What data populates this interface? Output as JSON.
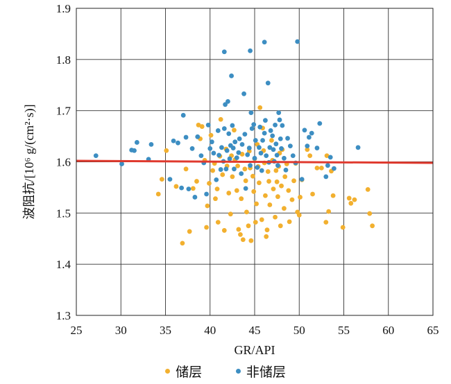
{
  "chart_data": {
    "type": "scatter",
    "xlabel": "GR/API",
    "ylabel": "波阻抗/[10⁶ g/(cm²·s)]",
    "xlim": [
      25,
      65
    ],
    "ylim": [
      1.3,
      1.9
    ],
    "xticks": [
      25,
      30,
      35,
      40,
      45,
      50,
      55,
      60,
      65
    ],
    "yticks": [
      1.3,
      1.4,
      1.5,
      1.6,
      1.7,
      1.8,
      1.9
    ],
    "xtick_labels": [
      "25",
      "30",
      "35",
      "40",
      "45",
      "50",
      "55",
      "60",
      "65"
    ],
    "ytick_labels": [
      "1.3",
      "1.4",
      "1.5",
      "1.6",
      "1.7",
      "1.8",
      "1.9"
    ],
    "grid": true,
    "legend_position": "bottom",
    "reference_line": {
      "y_start": 1.602,
      "y_end": 1.598,
      "color": "#e03a2e"
    },
    "series": [
      {
        "name": "储层",
        "color": "#f2b02f",
        "points": [
          [
            34.2,
            1.537
          ],
          [
            34.6,
            1.566
          ],
          [
            35.1,
            1.622
          ],
          [
            36.2,
            1.552
          ],
          [
            36.9,
            1.441
          ],
          [
            37.3,
            1.586
          ],
          [
            37.7,
            1.464
          ],
          [
            38.1,
            1.548
          ],
          [
            38.5,
            1.562
          ],
          [
            38.7,
            1.672
          ],
          [
            38.9,
            1.645
          ],
          [
            39.1,
            1.669
          ],
          [
            39.4,
            1.603
          ],
          [
            39.6,
            1.472
          ],
          [
            39.7,
            1.514
          ],
          [
            39.9,
            1.558
          ],
          [
            40.1,
            1.652
          ],
          [
            40.3,
            1.583
          ],
          [
            40.5,
            1.597
          ],
          [
            40.6,
            1.528
          ],
          [
            40.8,
            1.547
          ],
          [
            40.9,
            1.482
          ],
          [
            41.1,
            1.611
          ],
          [
            41.2,
            1.683
          ],
          [
            41.4,
            1.575
          ],
          [
            41.6,
            1.466
          ],
          [
            41.8,
            1.625
          ],
          [
            41.9,
            1.592
          ],
          [
            42.1,
            1.539
          ],
          [
            42.3,
            1.498
          ],
          [
            42.4,
            1.612
          ],
          [
            42.5,
            1.571
          ],
          [
            42.7,
            1.662
          ],
          [
            42.8,
            1.604
          ],
          [
            43.0,
            1.544
          ],
          [
            43.1,
            1.592
          ],
          [
            43.2,
            1.468
          ],
          [
            43.4,
            1.458
          ],
          [
            43.5,
            1.528
          ],
          [
            43.6,
            1.615
          ],
          [
            43.7,
            1.448
          ],
          [
            43.9,
            1.586
          ],
          [
            44.0,
            1.563
          ],
          [
            44.1,
            1.502
          ],
          [
            44.3,
            1.475
          ],
          [
            44.4,
            1.621
          ],
          [
            44.5,
            1.588
          ],
          [
            44.6,
            1.446
          ],
          [
            44.8,
            1.572
          ],
          [
            44.9,
            1.542
          ],
          [
            45.0,
            1.606
          ],
          [
            45.1,
            1.482
          ],
          [
            45.2,
            1.518
          ],
          [
            45.3,
            1.634
          ],
          [
            45.4,
            1.591
          ],
          [
            45.5,
            1.559
          ],
          [
            45.6,
            1.706
          ],
          [
            45.8,
            1.487
          ],
          [
            45.9,
            1.666
          ],
          [
            46.0,
            1.622
          ],
          [
            46.1,
            1.598
          ],
          [
            46.2,
            1.534
          ],
          [
            46.3,
            1.454
          ],
          [
            46.4,
            1.467
          ],
          [
            46.5,
            1.581
          ],
          [
            46.6,
            1.562
          ],
          [
            46.7,
            1.516
          ],
          [
            46.9,
            1.642
          ],
          [
            47.0,
            1.603
          ],
          [
            47.1,
            1.547
          ],
          [
            47.3,
            1.492
          ],
          [
            47.4,
            1.583
          ],
          [
            47.5,
            1.561
          ],
          [
            47.6,
            1.532
          ],
          [
            47.7,
            1.591
          ],
          [
            47.8,
            1.617
          ],
          [
            47.9,
            1.475
          ],
          [
            48.0,
            1.553
          ],
          [
            48.1,
            1.624
          ],
          [
            48.3,
            1.509
          ],
          [
            48.4,
            1.571
          ],
          [
            48.6,
            1.596
          ],
          [
            48.8,
            1.544
          ],
          [
            48.9,
            1.483
          ],
          [
            49.2,
            1.526
          ],
          [
            49.4,
            1.563
          ],
          [
            49.6,
            1.597
          ],
          [
            49.8,
            1.502
          ],
          [
            50.0,
            1.496
          ],
          [
            50.1,
            1.531
          ],
          [
            50.3,
            1.565
          ],
          [
            50.9,
            1.624
          ],
          [
            51.2,
            1.612
          ],
          [
            51.5,
            1.537
          ],
          [
            52.0,
            1.588
          ],
          [
            52.5,
            1.588
          ],
          [
            53.0,
            1.482
          ],
          [
            53.1,
            1.612
          ],
          [
            53.3,
            1.503
          ],
          [
            53.6,
            1.582
          ],
          [
            53.8,
            1.534
          ],
          [
            54.9,
            1.472
          ],
          [
            55.6,
            1.529
          ],
          [
            55.8,
            1.519
          ],
          [
            56.2,
            1.526
          ],
          [
            57.7,
            1.546
          ],
          [
            57.9,
            1.499
          ],
          [
            58.2,
            1.475
          ]
        ]
      },
      {
        "name": "非储层",
        "color": "#3d8ec2",
        "points": [
          [
            27.2,
            1.612
          ],
          [
            30.1,
            1.596
          ],
          [
            31.2,
            1.623
          ],
          [
            31.5,
            1.622
          ],
          [
            31.8,
            1.638
          ],
          [
            33.1,
            1.605
          ],
          [
            33.4,
            1.634
          ],
          [
            35.5,
            1.566
          ],
          [
            35.9,
            1.641
          ],
          [
            36.4,
            1.637
          ],
          [
            36.8,
            1.549
          ],
          [
            37.0,
            1.691
          ],
          [
            37.3,
            1.648
          ],
          [
            37.6,
            1.547
          ],
          [
            38.0,
            1.626
          ],
          [
            38.3,
            1.531
          ],
          [
            38.6,
            1.649
          ],
          [
            39.0,
            1.612
          ],
          [
            39.3,
            1.598
          ],
          [
            39.6,
            1.537
          ],
          [
            39.8,
            1.672
          ],
          [
            40.0,
            1.626
          ],
          [
            40.2,
            1.639
          ],
          [
            40.4,
            1.617
          ],
          [
            40.7,
            1.565
          ],
          [
            40.9,
            1.661
          ],
          [
            41.0,
            1.613
          ],
          [
            41.2,
            1.585
          ],
          [
            41.3,
            1.628
          ],
          [
            41.5,
            1.601
          ],
          [
            41.6,
            1.665
          ],
          [
            41.7,
            1.712
          ],
          [
            41.8,
            1.586
          ],
          [
            41.9,
            1.622
          ],
          [
            42.0,
            1.718
          ],
          [
            42.1,
            1.655
          ],
          [
            42.2,
            1.606
          ],
          [
            42.3,
            1.632
          ],
          [
            42.4,
            1.768
          ],
          [
            42.5,
            1.671
          ],
          [
            42.6,
            1.627
          ],
          [
            42.7,
            1.586
          ],
          [
            42.8,
            1.639
          ],
          [
            43.0,
            1.608
          ],
          [
            43.2,
            1.618
          ],
          [
            43.3,
            1.645
          ],
          [
            43.5,
            1.577
          ],
          [
            43.6,
            1.634
          ],
          [
            43.8,
            1.733
          ],
          [
            43.9,
            1.654
          ],
          [
            44.0,
            1.548
          ],
          [
            44.2,
            1.614
          ],
          [
            44.4,
            1.627
          ],
          [
            44.5,
            1.593
          ],
          [
            44.6,
            1.696
          ],
          [
            44.7,
            1.665
          ],
          [
            44.9,
            1.673
          ],
          [
            45.0,
            1.607
          ],
          [
            45.1,
            1.642
          ],
          [
            45.3,
            1.589
          ],
          [
            45.5,
            1.628
          ],
          [
            45.6,
            1.668
          ],
          [
            45.7,
            1.617
          ],
          [
            45.8,
            1.583
          ],
          [
            45.9,
            1.642
          ],
          [
            46.1,
            1.656
          ],
          [
            46.2,
            1.681
          ],
          [
            46.3,
            1.612
          ],
          [
            46.5,
            1.754
          ],
          [
            46.6,
            1.599
          ],
          [
            46.7,
            1.628
          ],
          [
            46.8,
            1.661
          ],
          [
            47.0,
            1.651
          ],
          [
            47.1,
            1.624
          ],
          [
            47.2,
            1.601
          ],
          [
            47.3,
            1.672
          ],
          [
            47.4,
            1.635
          ],
          [
            47.5,
            1.613
          ],
          [
            47.6,
            1.593
          ],
          [
            47.7,
            1.696
          ],
          [
            47.8,
            1.682
          ],
          [
            47.9,
            1.645
          ],
          [
            48.0,
            1.626
          ],
          [
            48.1,
            1.671
          ],
          [
            48.3,
            1.607
          ],
          [
            48.5,
            1.584
          ],
          [
            48.7,
            1.646
          ],
          [
            49.0,
            1.631
          ],
          [
            49.3,
            1.612
          ],
          [
            49.6,
            1.598
          ],
          [
            49.8,
            1.835
          ],
          [
            50.3,
            1.566
          ],
          [
            50.6,
            1.662
          ],
          [
            50.9,
            1.631
          ],
          [
            51.1,
            1.648
          ],
          [
            51.4,
            1.656
          ],
          [
            52.0,
            1.627
          ],
          [
            52.3,
            1.675
          ],
          [
            53.0,
            1.571
          ],
          [
            53.2,
            1.593
          ],
          [
            53.5,
            1.609
          ],
          [
            53.9,
            1.587
          ],
          [
            56.6,
            1.628
          ],
          [
            41.6,
            1.815
          ],
          [
            44.5,
            1.817
          ],
          [
            46.1,
            1.834
          ]
        ]
      }
    ]
  }
}
